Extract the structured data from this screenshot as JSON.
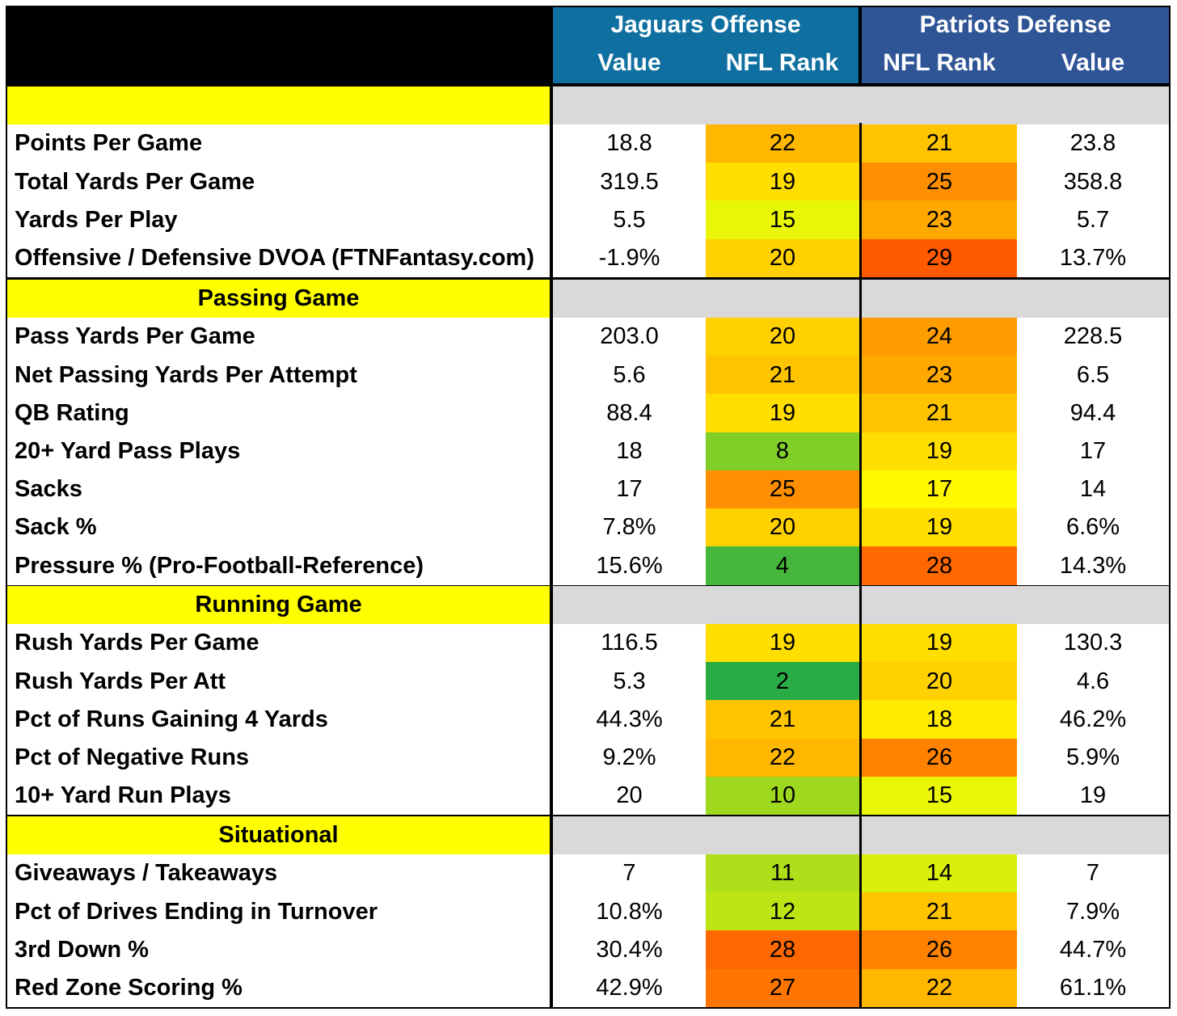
{
  "header": {
    "jaguars_title": "Jaguars Offense",
    "patriots_title": "Patriots Defense",
    "col_value_left": "Value",
    "col_rank_left": "NFL Rank",
    "col_rank_right": "NFL Rank",
    "col_value_right": "Value"
  },
  "colors": {
    "jaguars_header": "#0f6fa0",
    "patriots_header": "#2f5596",
    "section_label": "#ffff00",
    "section_fill": "#d9d9d9",
    "rank_scale": [
      "#1aa54a",
      "#ffff00",
      "#ff3300"
    ]
  },
  "sections": [
    {
      "title": "",
      "rows": [
        {
          "label": "Points Per Game",
          "off_value": "18.8",
          "off_rank": 22,
          "def_rank": 21,
          "def_value": "23.8"
        },
        {
          "label": "Total Yards Per Game",
          "off_value": "319.5",
          "off_rank": 19,
          "def_rank": 25,
          "def_value": "358.8"
        },
        {
          "label": "Yards Per Play",
          "off_value": "5.5",
          "off_rank": 15,
          "def_rank": 23,
          "def_value": "5.7"
        },
        {
          "label": "Offensive / Defensive DVOA (FTNFantasy.com)",
          "off_value": "-1.9%",
          "off_rank": 20,
          "def_rank": 29,
          "def_value": "13.7%"
        }
      ]
    },
    {
      "title": "Passing Game",
      "rows": [
        {
          "label": "Pass Yards Per Game",
          "off_value": "203.0",
          "off_rank": 20,
          "def_rank": 24,
          "def_value": "228.5"
        },
        {
          "label": "Net Passing Yards Per Attempt",
          "off_value": "5.6",
          "off_rank": 21,
          "def_rank": 23,
          "def_value": "6.5"
        },
        {
          "label": "QB Rating",
          "off_value": "88.4",
          "off_rank": 19,
          "def_rank": 21,
          "def_value": "94.4"
        },
        {
          "label": "20+ Yard Pass Plays",
          "off_value": "18",
          "off_rank": 8,
          "def_rank": 19,
          "def_value": "17"
        },
        {
          "label": "Sacks",
          "off_value": "17",
          "off_rank": 25,
          "def_rank": 17,
          "def_value": "14"
        },
        {
          "label": "Sack %",
          "off_value": "7.8%",
          "off_rank": 20,
          "def_rank": 19,
          "def_value": "6.6%"
        },
        {
          "label": "Pressure % (Pro-Football-Reference)",
          "off_value": "15.6%",
          "off_rank": 4,
          "def_rank": 28,
          "def_value": "14.3%"
        }
      ]
    },
    {
      "title": "Running Game",
      "rows": [
        {
          "label": "Rush Yards Per Game",
          "off_value": "116.5",
          "off_rank": 19,
          "def_rank": 19,
          "def_value": "130.3"
        },
        {
          "label": "Rush Yards Per Att",
          "off_value": "5.3",
          "off_rank": 2,
          "def_rank": 20,
          "def_value": "4.6"
        },
        {
          "label": "Pct of Runs Gaining 4 Yards",
          "off_value": "44.3%",
          "off_rank": 21,
          "def_rank": 18,
          "def_value": "46.2%"
        },
        {
          "label": "Pct of Negative Runs",
          "off_value": "9.2%",
          "off_rank": 22,
          "def_rank": 26,
          "def_value": "5.9%"
        },
        {
          "label": "10+ Yard Run Plays",
          "off_value": "20",
          "off_rank": 10,
          "def_rank": 15,
          "def_value": "19"
        }
      ]
    },
    {
      "title": "Situational",
      "rows": [
        {
          "label": "Giveaways / Takeaways",
          "off_value": "7",
          "off_rank": 11,
          "def_rank": 14,
          "def_value": "7"
        },
        {
          "label": "Pct of Drives Ending in Turnover",
          "off_value": "10.8%",
          "off_rank": 12,
          "def_rank": 21,
          "def_value": "7.9%"
        },
        {
          "label": "3rd Down %",
          "off_value": "30.4%",
          "off_rank": 28,
          "def_rank": 26,
          "def_value": "44.7%"
        },
        {
          "label": "Red Zone Scoring %",
          "off_value": "42.9%",
          "off_rank": 27,
          "def_rank": 22,
          "def_value": "61.1%"
        }
      ]
    }
  ]
}
